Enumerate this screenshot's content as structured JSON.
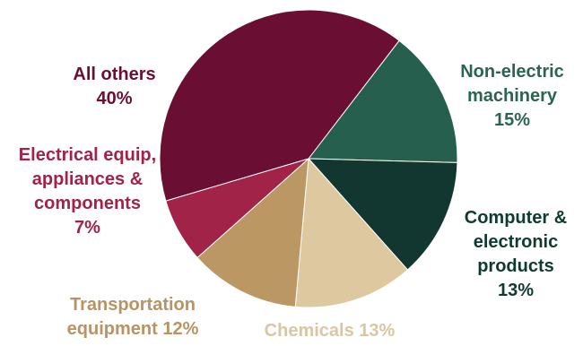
{
  "chart_data": {
    "type": "pie",
    "title": "",
    "slices": [
      {
        "name": "Non-electric machinery",
        "value": 15,
        "pct_label": "15%",
        "color": "#275f4e"
      },
      {
        "name": "Computer & electronic products",
        "value": 13,
        "pct_label": "13%",
        "color": "#113730"
      },
      {
        "name": "Chemicals",
        "value": 13,
        "pct_label": "13%",
        "color": "#ddc8a0"
      },
      {
        "name": "Transportation equipment",
        "value": 12,
        "pct_label": "12%",
        "color": "#bb9763"
      },
      {
        "name": "Electrical equip, appliances & components",
        "value": 7,
        "pct_label": "7%",
        "color": "#a12348"
      },
      {
        "name": "All others",
        "value": 40,
        "pct_label": "40%",
        "color": "#6b0e33"
      }
    ],
    "labels": {
      "non_electric": {
        "line1": "Non-electric",
        "line2": "machinery",
        "pct": "15%",
        "color": "#2b6450"
      },
      "computer": {
        "line1": "Computer &",
        "line2": "electronic",
        "line3": "products",
        "pct": "13%",
        "color": "#0f3a31"
      },
      "chemicals": {
        "text": "Chemicals",
        "pct": "13%",
        "color": "#d9c7a3"
      },
      "transport": {
        "line1": "Transportation",
        "line2": "equipment",
        "pct": "12%",
        "color": "#b89364"
      },
      "electrical": {
        "line1": "Electrical equip,",
        "line2": "appliances &",
        "line3": "components",
        "pct": "7%",
        "color": "#a12348"
      },
      "others": {
        "line1": "All others",
        "pct": "40%",
        "color": "#6b0e33"
      }
    }
  }
}
